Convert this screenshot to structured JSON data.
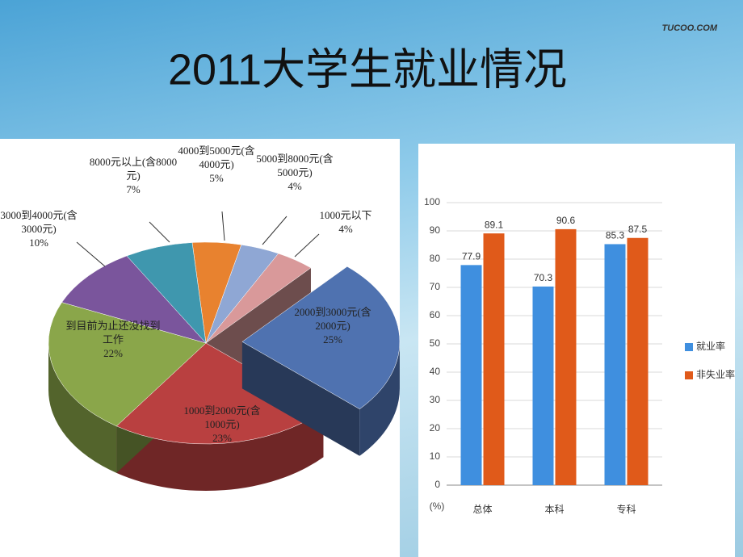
{
  "slide": {
    "title": "2011大学生就业情况",
    "logo": "TUCOO.COM"
  },
  "chart_data": [
    {
      "type": "pie3d",
      "categories": [
        "4000到5000元(含4000元)",
        "5000到8000元(含5000元)",
        "1000元以下",
        "2000到3000元(含2000元)",
        "1000到2000元(含1000元)",
        "到目前为止还没找到工作",
        "3000到4000元(含3000元)",
        "8000元以上(含8000元)"
      ],
      "values": [
        5,
        4,
        4,
        25,
        23,
        22,
        10,
        7
      ],
      "value_labels": [
        "5%",
        "4%",
        "4%",
        "25%",
        "23%",
        "22%",
        "10%",
        "7%"
      ],
      "colors": [
        "#e8822f",
        "#8fa7d4",
        "#d9999a",
        "#4f72b0",
        "#b94040",
        "#8aa64a",
        "#7a559c",
        "#3f97ae"
      ],
      "exploded": [
        3
      ]
    },
    {
      "type": "bar",
      "categories": [
        "总体",
        "本科",
        "专科"
      ],
      "series": [
        {
          "name": "就业率",
          "color": "#3f8fdf",
          "values": [
            77.9,
            70.3,
            85.3
          ]
        },
        {
          "name": "非失业率",
          "color": "#e05a1a",
          "values": [
            89.1,
            90.6,
            87.5
          ]
        }
      ],
      "y_label": "(%)",
      "ylim": [
        0,
        100
      ],
      "yticks": [
        0,
        10,
        20,
        30,
        40,
        50,
        60,
        70,
        80,
        90,
        100
      ],
      "grid": true,
      "legend": "right"
    }
  ]
}
